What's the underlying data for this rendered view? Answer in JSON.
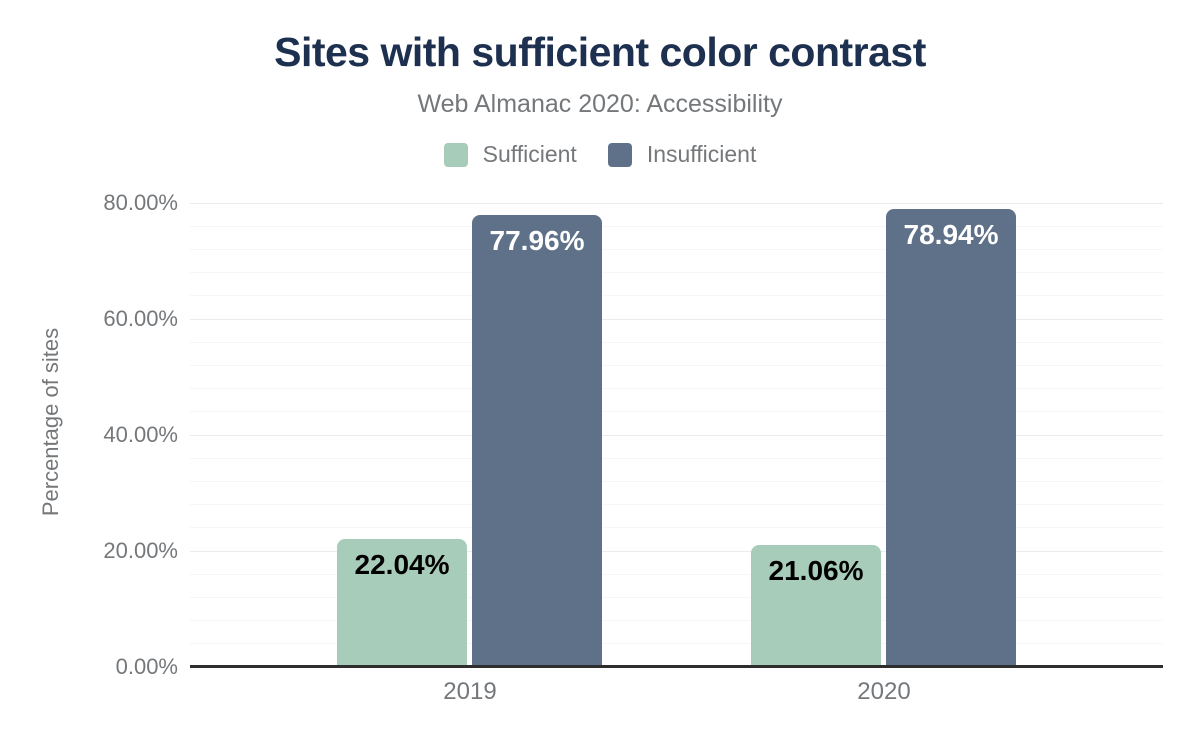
{
  "chart_data": {
    "type": "bar",
    "title": "Sites with sufficient color contrast",
    "subtitle": "Web Almanac 2020: Accessibility",
    "categories": [
      "2019",
      "2020"
    ],
    "series": [
      {
        "name": "Sufficient",
        "values": [
          22.04,
          21.06
        ],
        "labels": [
          "22.04%",
          "21.06%"
        ],
        "color": "#a8ccba",
        "label_color": "#000000"
      },
      {
        "name": "Insufficient",
        "values": [
          77.96,
          78.94
        ],
        "labels": [
          "77.96%",
          "78.94%"
        ],
        "color": "#5f7189",
        "label_color": "#ffffff"
      }
    ],
    "xlabel": "",
    "ylabel": "Percentage of sites",
    "ylim": [
      0,
      80
    ],
    "ytick_values": [
      0,
      20,
      40,
      60,
      80
    ],
    "ytick_labels": [
      "0.00%",
      "20.00%",
      "40.00%",
      "60.00%",
      "80.00%"
    ],
    "minor_grid_step": 4,
    "grid": true,
    "legend_position": "top",
    "colors": {
      "title": "#1e3050",
      "axis_text": "#75787b",
      "major_gridline": "#ebebeb",
      "minor_gridline": "#f6f6f6",
      "baseline": "#2e2e2e"
    }
  }
}
